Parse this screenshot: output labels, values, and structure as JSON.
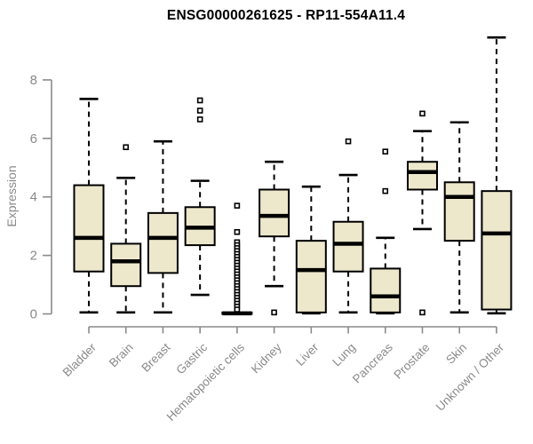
{
  "title": "ENSG00000261625 - RP11-554A11.4",
  "chart_data": {
    "type": "boxplot",
    "title": "ENSG00000261625 - RP11-554A11.4",
    "ylabel": "Expression",
    "xlabel": "",
    "ylim": [
      0,
      9.6
    ],
    "yticks": [
      0,
      2,
      4,
      6,
      8
    ],
    "grid": false,
    "legend": "none",
    "categories": [
      "Bladder",
      "Brain",
      "Breast",
      "Gastric",
      "Hematopoietic cells",
      "Kidney",
      "Liver",
      "Lung",
      "Pancreas",
      "Prostate",
      "Skin",
      "Unknown / Other"
    ],
    "series": [
      {
        "category": "Bladder",
        "whisker_low": 0.05,
        "q1": 1.45,
        "median": 2.6,
        "q3": 4.4,
        "whisker_high": 7.35,
        "outliers": []
      },
      {
        "category": "Brain",
        "whisker_low": 0.05,
        "q1": 0.95,
        "median": 1.8,
        "q3": 2.4,
        "whisker_high": 4.65,
        "outliers": [
          5.7
        ]
      },
      {
        "category": "Breast",
        "whisker_low": 0.05,
        "q1": 1.4,
        "median": 2.6,
        "q3": 3.45,
        "whisker_high": 5.9,
        "outliers": []
      },
      {
        "category": "Gastric",
        "whisker_low": 0.65,
        "q1": 2.35,
        "median": 2.95,
        "q3": 3.65,
        "whisker_high": 4.55,
        "outliers": [
          7.3,
          6.95,
          6.65
        ]
      },
      {
        "category": "Hematopoietic cells",
        "whisker_low": 0.0,
        "q1": 0.0,
        "median": 0.02,
        "q3": 0.05,
        "whisker_high": 0.05,
        "outliers": [
          3.7,
          2.8,
          2.45,
          2.35,
          2.25,
          2.15,
          2.05,
          1.95,
          1.85,
          1.75,
          1.65,
          1.55,
          1.45,
          1.35,
          1.25,
          1.15,
          1.05,
          0.95,
          0.85,
          0.75,
          0.65,
          0.55,
          0.45,
          0.35,
          0.25,
          0.15
        ]
      },
      {
        "category": "Kidney",
        "whisker_low": 0.95,
        "q1": 2.65,
        "median": 3.35,
        "q3": 4.25,
        "whisker_high": 5.2,
        "outliers": [
          0.05
        ]
      },
      {
        "category": "Liver",
        "whisker_low": 0.02,
        "q1": 0.05,
        "median": 1.5,
        "q3": 2.5,
        "whisker_high": 4.35,
        "outliers": []
      },
      {
        "category": "Lung",
        "whisker_low": 0.05,
        "q1": 1.45,
        "median": 2.4,
        "q3": 3.15,
        "whisker_high": 4.75,
        "outliers": [
          5.9
        ]
      },
      {
        "category": "Pancreas",
        "whisker_low": 0.02,
        "q1": 0.05,
        "median": 0.6,
        "q3": 1.55,
        "whisker_high": 2.6,
        "outliers": [
          5.55,
          4.2
        ]
      },
      {
        "category": "Prostate",
        "whisker_low": 2.9,
        "q1": 4.25,
        "median": 4.85,
        "q3": 5.2,
        "whisker_high": 6.25,
        "outliers": [
          6.85,
          0.05
        ]
      },
      {
        "category": "Skin",
        "whisker_low": 0.05,
        "q1": 2.5,
        "median": 4.0,
        "q3": 4.5,
        "whisker_high": 6.55,
        "outliers": []
      },
      {
        "category": "Unknown / Other",
        "whisker_low": 0.02,
        "q1": 0.15,
        "median": 2.75,
        "q3": 4.2,
        "whisker_high": 9.45,
        "outliers": []
      }
    ],
    "colors": {
      "box_fill": "#EDE7CC",
      "box_stroke": "#000000",
      "median": "#000000",
      "whisker": "#000000",
      "outlier_stroke": "#000000",
      "outlier_fill": "#FFFFFF",
      "axis": "#8A8A8A",
      "tick_label": "#8A8A8A",
      "title": "#000000",
      "background": "#FFFFFF"
    }
  }
}
